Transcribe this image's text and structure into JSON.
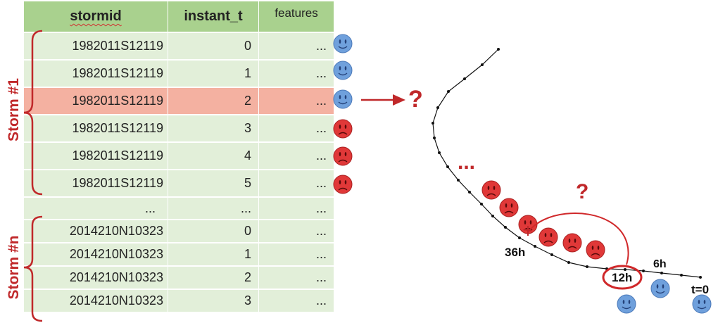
{
  "table": {
    "headers": [
      "stormid",
      "instant_t",
      "features"
    ],
    "storm1_rows": [
      {
        "stormid": "1982011S12119",
        "instant_t": "0",
        "features": "...",
        "face": "happy"
      },
      {
        "stormid": "1982011S12119",
        "instant_t": "1",
        "features": "...",
        "face": "happy"
      },
      {
        "stormid": "1982011S12119",
        "instant_t": "2",
        "features": "...",
        "face": "happy",
        "highlighted": true
      },
      {
        "stormid": "1982011S12119",
        "instant_t": "3",
        "features": "...",
        "face": "sad"
      },
      {
        "stormid": "1982011S12119",
        "instant_t": "4",
        "features": "...",
        "face": "sad"
      },
      {
        "stormid": "1982011S12119",
        "instant_t": "5",
        "features": "...",
        "face": "sad"
      }
    ],
    "ellipsis_row": [
      "...",
      "...",
      "..."
    ],
    "stormn_rows": [
      {
        "stormid": "2014210N10323",
        "instant_t": "0",
        "features": "..."
      },
      {
        "stormid": "2014210N10323",
        "instant_t": "1",
        "features": "..."
      },
      {
        "stormid": "2014210N10323",
        "instant_t": "2",
        "features": "..."
      },
      {
        "stormid": "2014210N10323",
        "instant_t": "3",
        "features": "..."
      }
    ]
  },
  "labels": {
    "storm1": "Storm #1",
    "stormn": "Storm #n",
    "question": "?",
    "dots": "...",
    "t36": "36h",
    "t12": "12h",
    "t6": "6h",
    "t0": "t=0"
  },
  "colors": {
    "header_green": "#a9d18e",
    "cell_green": "#e2efd9",
    "highlight_salmon": "#f4b1a1",
    "accent_red": "#c0282a",
    "happy_blue": "#6fa0dc",
    "sad_red": "#e03838"
  }
}
